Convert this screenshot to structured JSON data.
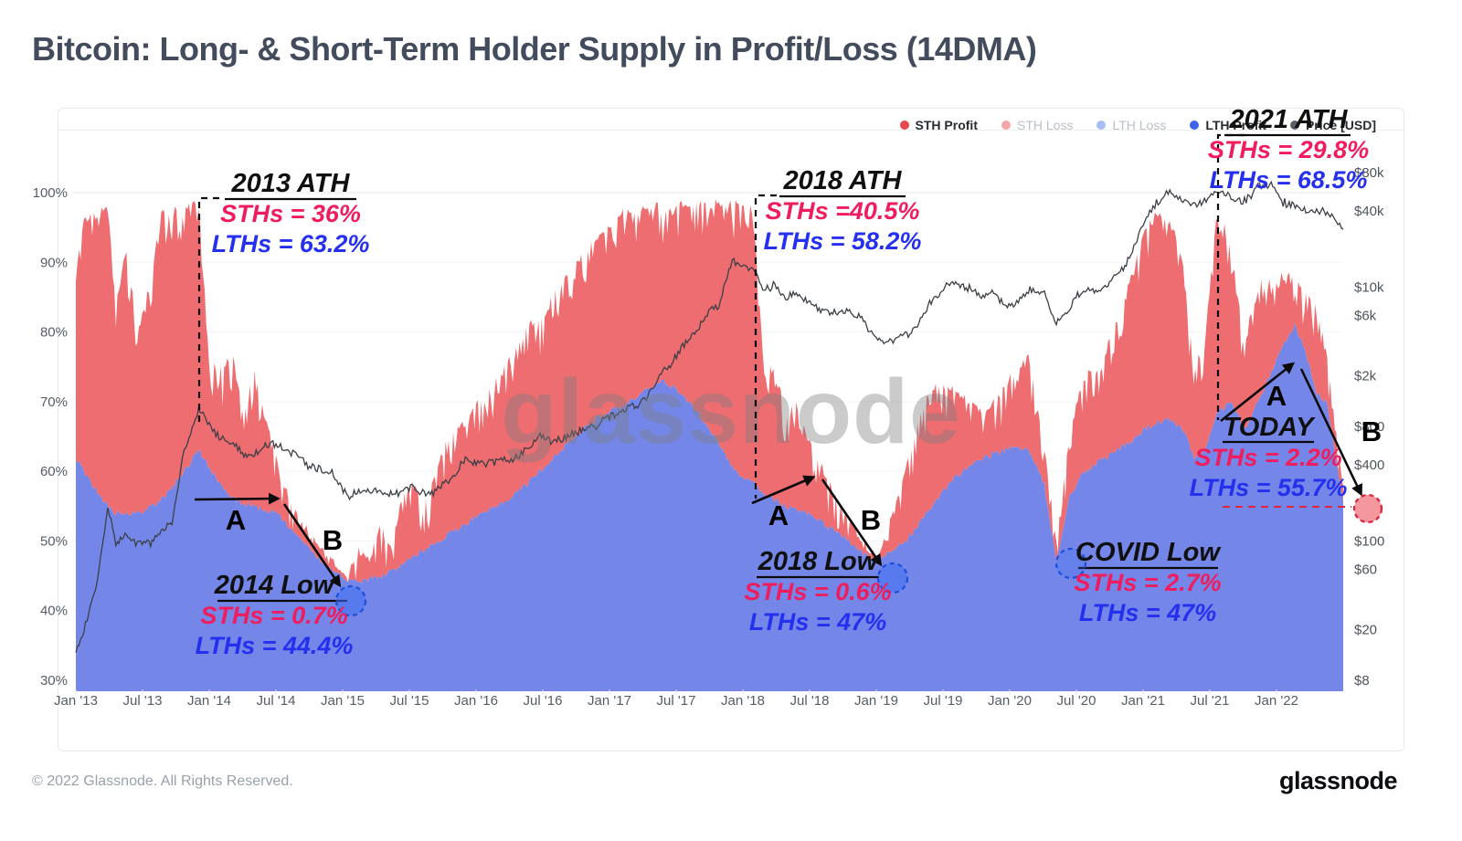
{
  "title": "Bitcoin: Long- & Short-Term Holder Supply in Profit/Loss (14DMA)",
  "watermark": "glassnode",
  "footer": {
    "copyright": "© 2022 Glassnode. All Rights Reserved.",
    "logo": "glassnode"
  },
  "pointers": {
    "a": "A",
    "b": "B"
  },
  "legend": {
    "items": [
      {
        "label": "STH Profit",
        "color": "#e7484d",
        "active": true
      },
      {
        "label": "STH Loss",
        "color": "#f3a6a9",
        "active": false
      },
      {
        "label": "LTH Loss",
        "color": "#a9bdf5",
        "active": false
      },
      {
        "label": "LTH Profit",
        "color": "#3e63e8",
        "active": true
      },
      {
        "label": "Price [USD]",
        "color": "#585d66",
        "active": true
      }
    ]
  },
  "annotations": [
    {
      "name": "2013-ath",
      "title": "2013 ATH",
      "sth": "STHs = 36%",
      "lth": "LTHs = 63.2%"
    },
    {
      "name": "2014-low",
      "title": "2014 Low",
      "sth": "STHs = 0.7%",
      "lth": "LTHs = 44.4%"
    },
    {
      "name": "2018-ath",
      "title": "2018 ATH",
      "sth": "STHs =40.5%",
      "lth": "LTHs = 58.2%"
    },
    {
      "name": "2018-low",
      "title": "2018 Low",
      "sth": "STHs = 0.6%",
      "lth": "LTHs = 47%"
    },
    {
      "name": "covid-low",
      "title": "COVID Low",
      "sth": "STHs = 2.7%",
      "lth": "LTHs = 47%"
    },
    {
      "name": "2021-ath",
      "title": "2021 ATH",
      "sth": "STHs = 29.8%",
      "lth": "LTHs = 68.5%"
    },
    {
      "name": "today",
      "title": "TODAY",
      "sth": "STHs = 2.2%",
      "lth": "LTHs = 55.7%"
    }
  ],
  "chart_data": {
    "type": "area",
    "title": "Bitcoin: Long- & Short-Term Holder Supply in Profit/Loss (14DMA)",
    "x_unit": "decimal_year",
    "xlim": [
      2013.0,
      2022.5
    ],
    "ylim_left": [
      30,
      100
    ],
    "ylim_right_log_usd": [
      8,
      80000
    ],
    "grid": "horizontal-light",
    "legend_position": "top-right",
    "series": [
      {
        "name": "LTH Profit",
        "color": "#7487e8",
        "role": "stacked-area-bottom",
        "unit": "% of supply"
      },
      {
        "name": "STH Profit",
        "color": "#ed6d70",
        "role": "stacked-area-top",
        "unit": "% of supply"
      }
    ],
    "price_series": {
      "name": "Price [USD]",
      "color": "#3b3f46",
      "scale": "log-right"
    },
    "axes": {
      "left_ticks": [
        "100%",
        "90%",
        "80%",
        "70%",
        "60%",
        "50%",
        "40%",
        "30%"
      ],
      "left_values": [
        100,
        90,
        80,
        70,
        60,
        50,
        40,
        30
      ],
      "right_ticks": [
        "$80k",
        "$40k",
        "$10k",
        "$6k",
        "$2k",
        "$800",
        "$400",
        "$100",
        "$60",
        "$20",
        "$8"
      ],
      "right_values": [
        80000,
        40000,
        10000,
        6000,
        2000,
        800,
        400,
        100,
        60,
        20,
        8
      ],
      "x_ticks": [
        "Jan '13",
        "Jul '13",
        "Jan '14",
        "Jul '14",
        "Jan '15",
        "Jul '15",
        "Jan '16",
        "Jul '16",
        "Jan '17",
        "Jul '17",
        "Jan '18",
        "Jul '18",
        "Jan '19",
        "Jul '19",
        "Jan '20",
        "Jul '20",
        "Jan '21",
        "Jul '21",
        "Jan '22"
      ]
    },
    "key_points": [
      {
        "label": "2013 ATH",
        "t": 2013.92,
        "sth_pct": 36,
        "lth_pct": 63.2
      },
      {
        "label": "2014 Low",
        "t": 2015.04,
        "sth_pct": 0.7,
        "lth_pct": 44.4
      },
      {
        "label": "2018 ATH",
        "t": 2018.08,
        "sth_pct": 40.5,
        "lth_pct": 58.2
      },
      {
        "label": "2018 Low",
        "t": 2019.0,
        "sth_pct": 0.6,
        "lth_pct": 47
      },
      {
        "label": "COVID Low",
        "t": 2020.35,
        "sth_pct": 2.7,
        "lth_pct": 47
      },
      {
        "label": "2021 ATH",
        "t": 2021.56,
        "sth_pct": 29.8,
        "lth_pct": 68.5
      },
      {
        "label": "TODAY",
        "t": 2022.5,
        "sth_pct": 2.2,
        "lth_pct": 55.7
      }
    ],
    "samples_format": [
      "t_decimal_year",
      "lth_profit_pct",
      "sth_profit_pct",
      "price_usd"
    ],
    "samples": [
      [
        2013.0,
        62,
        27,
        13
      ],
      [
        2013.06,
        60,
        36,
        20
      ],
      [
        2013.16,
        57,
        40,
        47
      ],
      [
        2013.24,
        55,
        43,
        180
      ],
      [
        2013.3,
        54,
        30,
        95
      ],
      [
        2013.38,
        54,
        38,
        110
      ],
      [
        2013.46,
        54,
        26,
        98
      ],
      [
        2013.56,
        55,
        32,
        95
      ],
      [
        2013.64,
        56,
        41,
        118
      ],
      [
        2013.72,
        57.5,
        40,
        140
      ],
      [
        2013.8,
        59.5,
        38,
        450
      ],
      [
        2013.92,
        63.2,
        36,
        1120
      ],
      [
        2014.0,
        60.5,
        15,
        805
      ],
      [
        2014.1,
        57.5,
        17,
        645
      ],
      [
        2014.18,
        56,
        21,
        605
      ],
      [
        2014.26,
        55.5,
        12,
        455
      ],
      [
        2014.34,
        55,
        20,
        480
      ],
      [
        2014.42,
        54.5,
        13,
        575
      ],
      [
        2014.5,
        54,
        8,
        590
      ],
      [
        2014.58,
        52.5,
        4.5,
        505
      ],
      [
        2014.66,
        50.5,
        3,
        480
      ],
      [
        2014.74,
        49,
        2.5,
        395
      ],
      [
        2014.82,
        47.5,
        2,
        370
      ],
      [
        2014.92,
        46,
        1.2,
        345
      ],
      [
        2015.04,
        44.4,
        0.7,
        230
      ],
      [
        2015.12,
        44.2,
        4.5,
        245
      ],
      [
        2015.2,
        44.6,
        2.5,
        250
      ],
      [
        2015.28,
        45,
        7.5,
        240
      ],
      [
        2015.36,
        45.5,
        4,
        237
      ],
      [
        2015.44,
        46.5,
        9,
        242
      ],
      [
        2015.52,
        47.5,
        11.5,
        272
      ],
      [
        2015.6,
        48.5,
        6,
        237
      ],
      [
        2015.68,
        49.5,
        9,
        238
      ],
      [
        2015.76,
        50.5,
        13,
        288
      ],
      [
        2015.84,
        51.5,
        15,
        332
      ],
      [
        2015.92,
        52.5,
        14,
        445
      ],
      [
        2016.0,
        53.5,
        16,
        405
      ],
      [
        2016.1,
        54.5,
        17,
        422
      ],
      [
        2016.2,
        55.5,
        19,
        425
      ],
      [
        2016.3,
        57,
        20.5,
        455
      ],
      [
        2016.4,
        58.5,
        23,
        545
      ],
      [
        2016.48,
        60,
        21,
        675
      ],
      [
        2016.56,
        61.5,
        23,
        615
      ],
      [
        2016.64,
        63,
        24,
        625
      ],
      [
        2016.72,
        64.5,
        25,
        705
      ],
      [
        2016.8,
        66,
        25,
        745
      ],
      [
        2016.9,
        67.5,
        26,
        795
      ],
      [
        2017.0,
        68.5,
        27,
        970
      ],
      [
        2017.1,
        69.5,
        28,
        1090
      ],
      [
        2017.2,
        70.5,
        27,
        1190
      ],
      [
        2017.3,
        72,
        26,
        1450
      ],
      [
        2017.4,
        73,
        25,
        2150
      ],
      [
        2017.48,
        72,
        26,
        2600
      ],
      [
        2017.56,
        70.5,
        28,
        3500
      ],
      [
        2017.64,
        69,
        29.5,
        4350
      ],
      [
        2017.72,
        67,
        31.5,
        5800
      ],
      [
        2017.82,
        64,
        34.5,
        7400
      ],
      [
        2017.92,
        60.5,
        38,
        16000
      ],
      [
        2018.08,
        58.2,
        40.5,
        13500
      ],
      [
        2018.16,
        56.5,
        17,
        9300
      ],
      [
        2018.24,
        56,
        20,
        10600
      ],
      [
        2018.32,
        55,
        13,
        8200
      ],
      [
        2018.4,
        54.5,
        15,
        9200
      ],
      [
        2018.48,
        54,
        11,
        7650
      ],
      [
        2018.56,
        53,
        9,
        6900
      ],
      [
        2018.64,
        52,
        6.5,
        6400
      ],
      [
        2018.72,
        51,
        4.5,
        6500
      ],
      [
        2018.8,
        50,
        3,
        6450
      ],
      [
        2018.88,
        48.5,
        2,
        5750
      ],
      [
        2019.0,
        47,
        0.6,
        3900
      ],
      [
        2019.08,
        48,
        3.5,
        3700
      ],
      [
        2019.16,
        49,
        7,
        4000
      ],
      [
        2019.24,
        50.5,
        11,
        4200
      ],
      [
        2019.32,
        52.5,
        15.5,
        5300
      ],
      [
        2019.4,
        54.5,
        17,
        7700
      ],
      [
        2019.48,
        56.5,
        16,
        8900
      ],
      [
        2019.56,
        58.5,
        13.5,
        11000
      ],
      [
        2019.64,
        60,
        11,
        10300
      ],
      [
        2019.72,
        61,
        8.5,
        9700
      ],
      [
        2019.8,
        62,
        6.5,
        8400
      ],
      [
        2019.88,
        62.5,
        7.5,
        9200
      ],
      [
        2019.96,
        63,
        9,
        7300
      ],
      [
        2020.04,
        63.5,
        11,
        7300
      ],
      [
        2020.14,
        63,
        13.5,
        9600
      ],
      [
        2020.26,
        58,
        6,
        8950
      ],
      [
        2020.35,
        47,
        2.7,
        5250
      ],
      [
        2020.44,
        56,
        8,
        6550
      ],
      [
        2020.52,
        59,
        12.5,
        8950
      ],
      [
        2020.6,
        60.5,
        14,
        9500
      ],
      [
        2020.68,
        61.5,
        13,
        9200
      ],
      [
        2020.76,
        62.5,
        17,
        11400
      ],
      [
        2020.84,
        63.5,
        20,
        14000
      ],
      [
        2020.92,
        64.5,
        24,
        19000
      ],
      [
        2021.0,
        66,
        28,
        32000
      ],
      [
        2021.1,
        67,
        30,
        47000
      ],
      [
        2021.2,
        67.5,
        29,
        56000
      ],
      [
        2021.3,
        66,
        24,
        48000
      ],
      [
        2021.38,
        62,
        13,
        44000
      ],
      [
        2021.46,
        63,
        15,
        47000
      ],
      [
        2021.56,
        68.5,
        29.8,
        58000
      ],
      [
        2021.66,
        70,
        22,
        52000
      ],
      [
        2021.76,
        66,
        12,
        47000
      ],
      [
        2021.86,
        70,
        18,
        62000
      ],
      [
        2021.96,
        74,
        14,
        65000
      ],
      [
        2022.05,
        78,
        10,
        47000
      ],
      [
        2022.14,
        81,
        7,
        43500
      ],
      [
        2022.22,
        77,
        9,
        41500
      ],
      [
        2022.3,
        71,
        13,
        40000
      ],
      [
        2022.38,
        70,
        6,
        39500
      ],
      [
        2022.46,
        60,
        4,
        32000
      ],
      [
        2022.5,
        55.7,
        2.2,
        28500
      ]
    ]
  }
}
